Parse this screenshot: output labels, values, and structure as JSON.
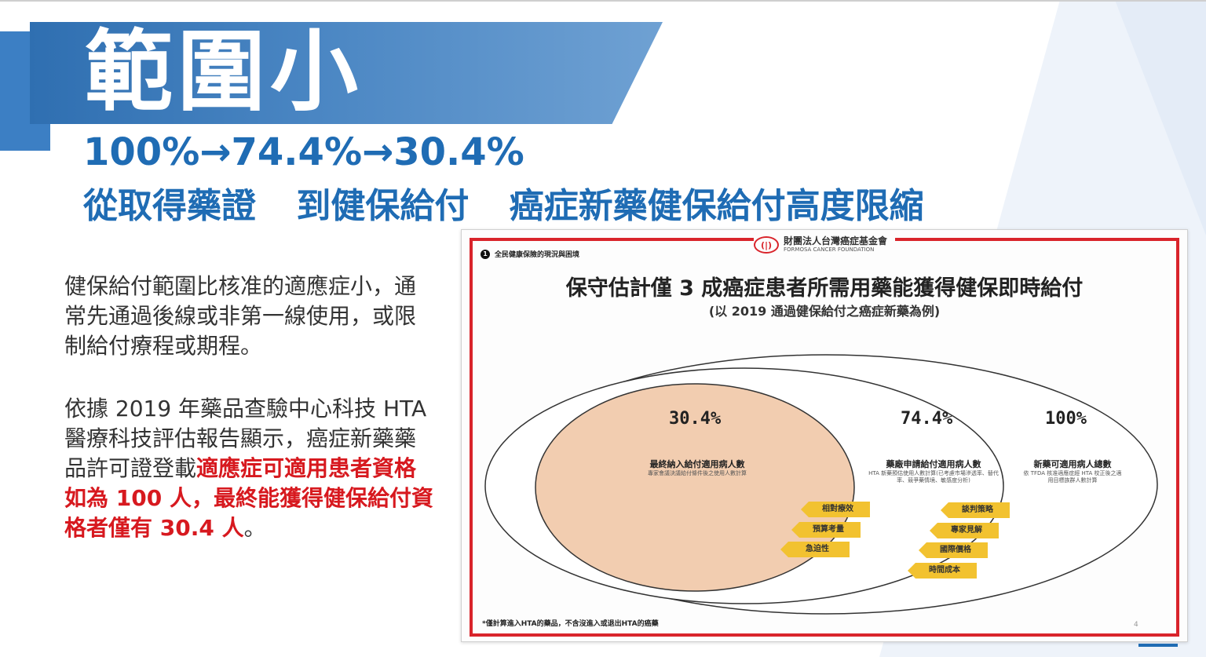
{
  "slide": {
    "title": "範圍小",
    "subtitle_line1": "100%→74.4%→30.4%",
    "subtitle_line2_parts": [
      "從取得藥證",
      "到健保給付",
      "癌症新藥健保給付高度限縮"
    ]
  },
  "body": {
    "para1": "健保給付範圍比核准的適應症小，通常先通過後線或非第一線使用，或限制給付療程或期程。",
    "para2_plain": "依據 2019 年藥品查驗中心科技 HTA 醫療科技評估報告顯示，癌症新藥藥品許可證登載",
    "para2_highlight": "適應症可適用患者資格如為 100 人，最終能獲得健保給付資格者僅有 30.4 人",
    "para2_end": "。"
  },
  "figure": {
    "section_number": "1",
    "section_label": "全民健康保險的現況與困境",
    "logo_name": "財團法人台灣癌症基金會",
    "logo_sub": "FORMOSA CANCER FOUNDATION",
    "logo_mark": "(|)",
    "title": "保守估計僅 3 成癌症患者所需用藥能獲得健保即時給付",
    "subtitle": "(以 2019 通過健保給付之癌症新藥為例)",
    "circles": [
      {
        "pct": "30.4%",
        "label": "最終納入給付適用病人數",
        "desc": "專家會議決議給付條件後之使用人數計算"
      },
      {
        "pct": "74.4%",
        "label": "藥廠申請給付適用病人數",
        "desc": "HTA 新藥預估使用人數計算(已考慮市場滲透率、替代率、競爭藥情境、敏感度分析)"
      },
      {
        "pct": "100%",
        "label": "新藥可適用病人總數",
        "desc": "依 TFDA 核准適應症經 HTA 校正後之適用目標族群人數計算"
      }
    ],
    "tags_left": [
      "相對療效",
      "預算考量",
      "急迫性"
    ],
    "tags_right": [
      "談判策略",
      "專家見解",
      "國際價格",
      "時間成本"
    ],
    "colors": {
      "inner_fill": "#f2cdb0",
      "tag": "#f2c230",
      "frame": "#d9242b"
    },
    "footnote": "*僅計算進入HTA的藥品，不含沒進入或退出HTA的癌藥",
    "page_number": "4"
  }
}
